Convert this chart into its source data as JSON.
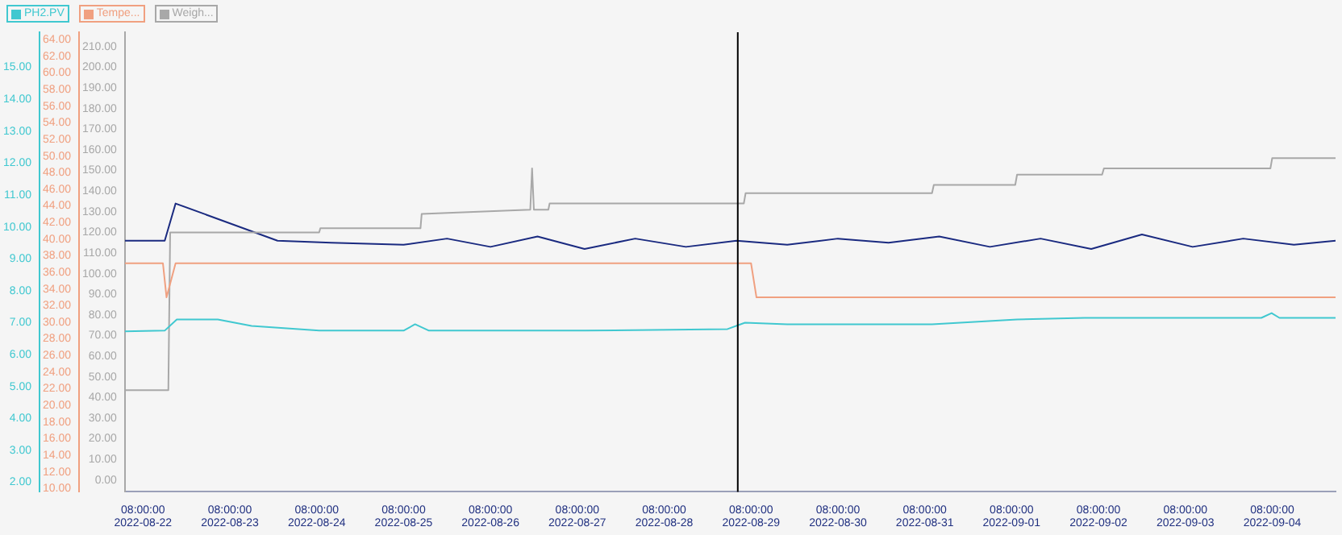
{
  "chart_data": {
    "type": "line",
    "legend": "top left",
    "xlim": [
      "2022-08-22T03:00",
      "2022-09-05T01:30"
    ],
    "xticks": [
      {
        "value": "2022-08-22T08:00",
        "label": "08:00:00 2022-08-22"
      },
      {
        "value": "2022-08-23T08:00",
        "label": "08:00:00 2022-08-23"
      },
      {
        "value": "2022-08-24T08:00",
        "label": "08:00:00 2022-08-24"
      },
      {
        "value": "2022-08-25T08:00",
        "label": "08:00:00 2022-08-25"
      },
      {
        "value": "2022-08-26T08:00",
        "label": "08:00:00 2022-08-26"
      },
      {
        "value": "2022-08-27T08:00",
        "label": "08:00:00 2022-08-27"
      },
      {
        "value": "2022-08-28T08:00",
        "label": "08:00:00 2022-08-28"
      },
      {
        "value": "2022-08-29T08:00",
        "label": "08:00:00 2022-08-29"
      },
      {
        "value": "2022-08-30T08:00",
        "label": "08:00:00 2022-08-30"
      },
      {
        "value": "2022-08-31T08:00",
        "label": "08:00:00 2022-08-31"
      },
      {
        "value": "2022-09-01T08:00",
        "label": "08:00:00 2022-09-01"
      },
      {
        "value": "2022-09-02T08:00",
        "label": "08:00:00 2022-09-02"
      },
      {
        "value": "2022-09-03T08:00",
        "label": "08:00:00 2022-09-03"
      },
      {
        "value": "2022-09-04T08:00",
        "label": "08:00:00 2022-09-04"
      }
    ],
    "ylim": [
      1.7,
      16.1
    ],
    "yticks": [
      {
        "value": 2,
        "label": "2.00"
      },
      {
        "value": 3,
        "label": "3.00"
      },
      {
        "value": 4,
        "label": "4.00"
      },
      {
        "value": 5,
        "label": "5.00"
      },
      {
        "value": 6,
        "label": "6.00"
      },
      {
        "value": 7,
        "label": "7.00"
      },
      {
        "value": 8,
        "label": "8.00"
      },
      {
        "value": 9,
        "label": "9.00"
      },
      {
        "value": 10,
        "label": "10.00"
      },
      {
        "value": 11,
        "label": "11.00"
      },
      {
        "value": 12,
        "label": "12.00"
      },
      {
        "value": 13,
        "label": "13.00"
      },
      {
        "value": 14,
        "label": "14.00"
      },
      {
        "value": 15,
        "label": "15.00"
      }
    ],
    "y2lim": [
      9.6,
      64.9
    ],
    "y2ticks": [
      {
        "value": 10,
        "label": "10.00"
      },
      {
        "value": 12,
        "label": "12.00"
      },
      {
        "value": 14,
        "label": "14.00"
      },
      {
        "value": 16,
        "label": "16.00"
      },
      {
        "value": 18,
        "label": "18.00"
      },
      {
        "value": 20,
        "label": "20.00"
      },
      {
        "value": 22,
        "label": "22.00"
      },
      {
        "value": 24,
        "label": "24.00"
      },
      {
        "value": 26,
        "label": "26.00"
      },
      {
        "value": 28,
        "label": "28.00"
      },
      {
        "value": 30,
        "label": "30.00"
      },
      {
        "value": 32,
        "label": "32.00"
      },
      {
        "value": 34,
        "label": "34.00"
      },
      {
        "value": 36,
        "label": "36.00"
      },
      {
        "value": 38,
        "label": "38.00"
      },
      {
        "value": 40,
        "label": "40.00"
      },
      {
        "value": 42,
        "label": "42.00"
      },
      {
        "value": 44,
        "label": "44.00"
      },
      {
        "value": 46,
        "label": "46.00"
      },
      {
        "value": 48,
        "label": "48.00"
      },
      {
        "value": 50,
        "label": "50.00"
      },
      {
        "value": 52,
        "label": "52.00"
      },
      {
        "value": 54,
        "label": "54.00"
      },
      {
        "value": 56,
        "label": "56.00"
      },
      {
        "value": 58,
        "label": "58.00"
      },
      {
        "value": 60,
        "label": "60.00"
      },
      {
        "value": 62,
        "label": "62.00"
      },
      {
        "value": 64,
        "label": "64.00"
      }
    ],
    "y3lim": [
      -5.7,
      217
    ],
    "y3ticks": [
      {
        "value": 0,
        "label": "0.00"
      },
      {
        "value": 10,
        "label": "10.00"
      },
      {
        "value": 20,
        "label": "20.00"
      },
      {
        "value": 30,
        "label": "30.00"
      },
      {
        "value": 40,
        "label": "40.00"
      },
      {
        "value": 50,
        "label": "50.00"
      },
      {
        "value": 60,
        "label": "60.00"
      },
      {
        "value": 70,
        "label": "70.00"
      },
      {
        "value": 80,
        "label": "80.00"
      },
      {
        "value": 90,
        "label": "90.00"
      },
      {
        "value": 100,
        "label": "100.00"
      },
      {
        "value": 110,
        "label": "110.00"
      },
      {
        "value": 120,
        "label": "120.00"
      },
      {
        "value": 130,
        "label": "130.00"
      },
      {
        "value": 140,
        "label": "140.00"
      },
      {
        "value": 150,
        "label": "150.00"
      },
      {
        "value": 160,
        "label": "160.00"
      },
      {
        "value": 170,
        "label": "170.00"
      },
      {
        "value": 180,
        "label": "180.00"
      },
      {
        "value": 190,
        "label": "190.00"
      },
      {
        "value": 200,
        "label": "200.00"
      },
      {
        "value": 210,
        "label": "210.00"
      }
    ],
    "ref_lines": [
      {
        "axis": "x",
        "value": "2022-08-29T04:20",
        "color": "#000000"
      }
    ],
    "series": [
      {
        "name": "PH2.PV",
        "color": "#40c8d0",
        "axis": "y",
        "x": [
          "2022-08-22T03:00",
          "2022-08-22T14:00",
          "2022-08-22T17:20",
          "2022-08-23T04:40",
          "2022-08-23T14:00",
          "2022-08-24T08:40",
          "2022-08-25T08:00",
          "2022-08-25T11:10",
          "2022-08-25T15:00",
          "2022-08-27T10:10",
          "2022-08-29T01:30",
          "2022-08-29T06:20",
          "2022-08-29T18:00",
          "2022-08-31T10:00",
          "2022-09-01T09:30",
          "2022-09-02T04:10",
          "2022-09-04T05:00",
          "2022-09-04T07:50",
          "2022-09-04T10:00",
          "2022-09-05T01:30"
        ],
        "values": [
          6.73,
          6.75,
          7.1,
          7.1,
          6.9,
          6.75,
          6.75,
          6.95,
          6.75,
          6.75,
          6.8,
          7.0,
          6.95,
          6.95,
          7.1,
          7.15,
          7.15,
          7.3,
          7.15,
          7.15
        ]
      },
      {
        "name": "Tempe...",
        "color": "#f0a080",
        "axis": "y2",
        "x": [
          "2022-08-22T03:00",
          "2022-08-22T13:30",
          "2022-08-22T14:30",
          "2022-08-22T17:00",
          "2022-08-29T08:00",
          "2022-08-29T09:30",
          "2022-09-05T01:30"
        ],
        "values": [
          37.1,
          37.1,
          33.0,
          37.1,
          37.1,
          33.0,
          33.0
        ]
      },
      {
        "name": "Weigh...",
        "color": "#a8a8a8",
        "axis": "y3",
        "x": [
          "2022-08-22T03:00",
          "2022-08-22T15:00",
          "2022-08-22T15:30",
          "2022-08-24T08:40",
          "2022-08-24T09:00",
          "2022-08-25T12:40",
          "2022-08-25T13:00",
          "2022-08-26T19:00",
          "2022-08-26T19:30",
          "2022-08-26T20:00",
          "2022-08-27T00:00",
          "2022-08-27T00:20",
          "2022-08-29T06:00",
          "2022-08-29T06:30",
          "2022-08-31T10:00",
          "2022-08-31T10:30",
          "2022-09-01T09:00",
          "2022-09-01T09:30",
          "2022-09-02T09:00",
          "2022-09-02T09:30",
          "2022-09-04T07:30",
          "2022-09-04T08:00",
          "2022-09-05T01:30"
        ],
        "values": [
          43.6,
          43.6,
          120,
          120,
          122,
          122,
          129,
          131,
          151,
          131,
          131,
          134,
          134,
          139,
          139,
          143,
          143,
          148,
          148,
          151,
          151,
          156,
          156
        ]
      },
      {
        "color": "#1a2a80",
        "axis": "y3",
        "x": [
          "2022-08-22T03:00",
          "2022-08-22T14:00",
          "2022-08-22T17:00",
          "2022-08-23T21:10",
          "2022-08-24T12:00",
          "2022-08-25T08:00",
          "2022-08-25T20:00",
          "2022-08-26T08:00",
          "2022-08-26T21:00",
          "2022-08-27T10:00",
          "2022-08-28T00:00",
          "2022-08-28T14:00",
          "2022-08-29T04:00",
          "2022-08-29T18:00",
          "2022-08-30T08:00",
          "2022-08-30T22:00",
          "2022-08-31T12:00",
          "2022-09-01T02:00",
          "2022-09-01T16:00",
          "2022-09-02T06:00",
          "2022-09-02T20:00",
          "2022-09-03T10:00",
          "2022-09-04T00:00",
          "2022-09-04T14:00",
          "2022-09-05T01:30"
        ],
        "values": [
          116,
          116,
          134,
          116,
          115,
          114,
          117,
          113,
          118,
          112,
          117,
          113,
          116,
          114,
          117,
          115,
          118,
          113,
          117,
          112,
          119,
          113,
          117,
          114,
          116
        ]
      }
    ]
  }
}
